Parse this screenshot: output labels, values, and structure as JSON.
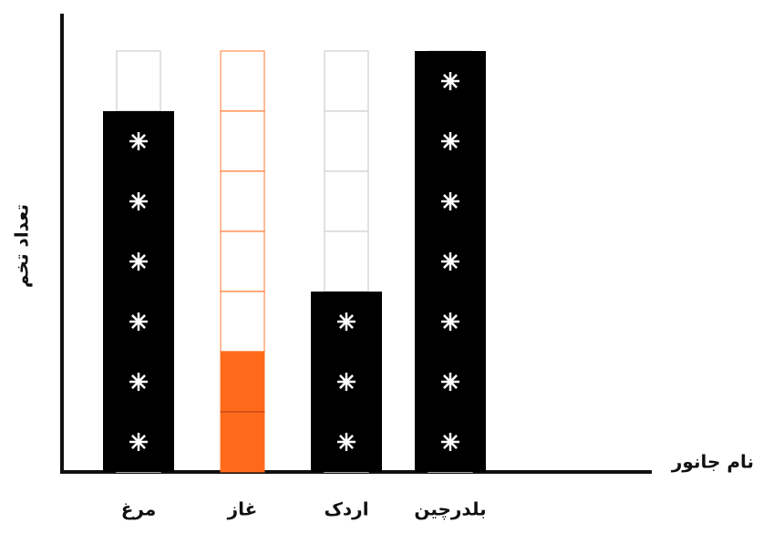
{
  "chart_data": {
    "type": "pictograph",
    "x_label": "نام جانور",
    "y_label": "تعداد تخم",
    "categories": [
      "مرغ",
      "غاز",
      "اردک",
      "بلدرچین"
    ],
    "values": [
      6,
      2,
      3,
      7
    ],
    "colors": [
      "#000000",
      "#ff6a1a",
      "#000000",
      "#000000"
    ],
    "ylim": [
      0,
      7
    ]
  }
}
